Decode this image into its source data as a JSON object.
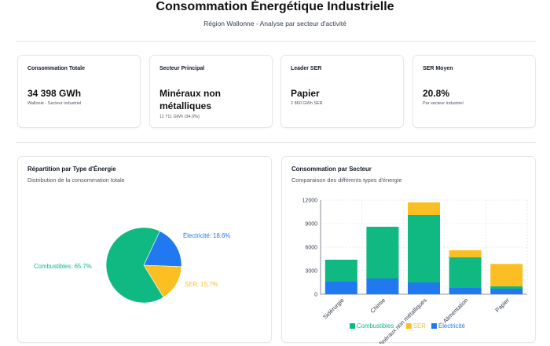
{
  "header": {
    "title": "Consommation Énergétique Industrielle",
    "subtitle": "Région Wallonne - Analyse par secteur d'activité"
  },
  "kpis": [
    {
      "label": "Consommation Totale",
      "value": "34 398 GWh",
      "sub": "Wallonie - Secteur industriel"
    },
    {
      "label": "Secteur Principal",
      "value": "Minéraux non métalliques",
      "sub": "11 711 GWh (34.0%)"
    },
    {
      "label": "Leader SER",
      "value": "Papier",
      "sub": "2 860 GWh SER"
    },
    {
      "label": "SER Moyen",
      "value": "20.8%",
      "sub": "Par secteur industriel"
    }
  ],
  "colors": {
    "combustibles": "#10b981",
    "ser": "#fbbf24",
    "electricite": "#2079f0"
  },
  "chart_data": [
    {
      "type": "pie",
      "title": "Répartition par Type d'Énergie",
      "subtitle": "Distribution de la consommation totale",
      "slices": [
        {
          "name": "Combustibles",
          "value": 65.7,
          "label": "Combustibles: 65.7%"
        },
        {
          "name": "SER",
          "value": 15.7,
          "label": "SER: 15.7%"
        },
        {
          "name": "Électricité",
          "value": 18.6,
          "label": "Électricité: 18.6%"
        }
      ]
    },
    {
      "type": "bar",
      "stacked": true,
      "title": "Consommation par Secteur",
      "subtitle": "Comparaison des différents types d'énergie",
      "categories": [
        "Sidérurgie",
        "Chimie",
        "Minéraux non métalliques",
        "Alimentation",
        "Papier"
      ],
      "series": [
        {
          "name": "Électricité",
          "values": [
            1600,
            2000,
            1500,
            800,
            700
          ]
        },
        {
          "name": "Combustibles",
          "values": [
            2800,
            6600,
            8600,
            3900,
            300
          ]
        },
        {
          "name": "SER",
          "values": [
            0,
            0,
            1600,
            900,
            2860
          ]
        }
      ],
      "legend": [
        "Combustibles",
        "SER",
        "Électricité"
      ],
      "ylim": [
        0,
        12000
      ],
      "yticks": [
        "0",
        "3000",
        "6000",
        "9000",
        "12000"
      ],
      "grid": true
    }
  ]
}
